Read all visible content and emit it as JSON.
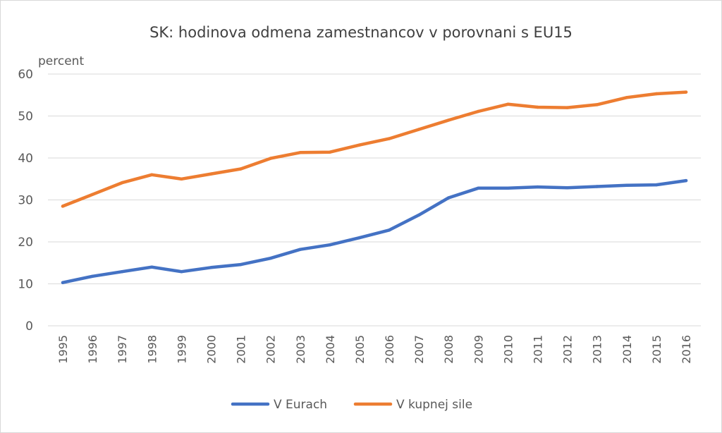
{
  "chart_data": {
    "type": "line",
    "title": "SK: hodinova odmena zamestnancov v porovnani s EU15",
    "unit_label": "percent",
    "xlabel": "",
    "ylabel": "",
    "ylim": [
      0,
      60
    ],
    "yticks": [
      "0",
      "10",
      "20",
      "30",
      "40",
      "50",
      "60"
    ],
    "categories": [
      "1995",
      "1996",
      "1997",
      "1998",
      "1999",
      "2000",
      "2001",
      "2002",
      "2003",
      "2004",
      "2005",
      "2006",
      "2007",
      "2008",
      "2009",
      "2010",
      "2011",
      "2012",
      "2013",
      "2014",
      "2015",
      "2016"
    ],
    "grid": true,
    "legend_position": "bottom",
    "series": [
      {
        "name": "V Eurach",
        "color": "#4472c4",
        "values": [
          10.3,
          11.8,
          12.9,
          14.0,
          12.9,
          13.9,
          14.6,
          16.1,
          18.2,
          19.3,
          21.0,
          22.8,
          26.4,
          30.5,
          32.8,
          32.8,
          33.1,
          32.9,
          33.2,
          33.5,
          33.6,
          34.6
        ]
      },
      {
        "name": "V kupnej sile",
        "color": "#ed7d31",
        "values": [
          28.5,
          31.3,
          34.1,
          36.0,
          35.0,
          36.2,
          37.4,
          39.9,
          41.3,
          41.4,
          43.1,
          44.6,
          46.8,
          49.0,
          51.1,
          52.8,
          52.1,
          52.0,
          52.7,
          54.4,
          55.3,
          55.7
        ]
      }
    ]
  }
}
